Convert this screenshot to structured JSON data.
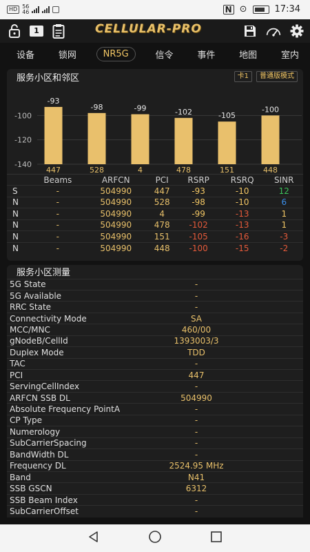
{
  "status_bar": {
    "left_badges": [
      "HD",
      "56",
      "46",
      "📶"
    ],
    "time": "17:34"
  },
  "toolbar": {
    "sim_badge": "1",
    "title": "CELLULAR-PRO"
  },
  "tabs": [
    "设备",
    "锁网",
    "NR5G",
    "信令",
    "事件",
    "地图",
    "室内"
  ],
  "active_tab": "NR5G",
  "neighbor_panel": {
    "title": "服务小区和邻区",
    "card_badge": "卡1",
    "mode_badge": "普通版模式"
  },
  "chart_data": {
    "type": "bar",
    "categories": [
      "447",
      "528",
      "4",
      "478",
      "151",
      "448"
    ],
    "values": [
      -93,
      -98,
      -99,
      -102,
      -105,
      -100
    ],
    "data_labels": [
      "-93",
      "-98",
      "-99",
      "-102",
      "-105",
      "-100"
    ],
    "y_ticks": [
      "-100",
      "-120",
      "-140"
    ],
    "ylim": [
      -140,
      -80
    ],
    "bar_color": "#e9c06c",
    "grid": true
  },
  "neighbor_table": {
    "headers": [
      "",
      "Beams",
      "ARFCN",
      "PCI",
      "RSRP",
      "RSRQ",
      "SINR"
    ],
    "rows": [
      [
        "S",
        "-",
        "504990",
        "447",
        "-93",
        "-10",
        "12"
      ],
      [
        "N",
        "-",
        "504990",
        "528",
        "-98",
        "-10",
        "6"
      ],
      [
        "N",
        "-",
        "504990",
        "4",
        "-99",
        "-13",
        "1"
      ],
      [
        "N",
        "-",
        "504990",
        "478",
        "-102",
        "-13",
        "1"
      ],
      [
        "N",
        "-",
        "504990",
        "151",
        "-105",
        "-16",
        "-3"
      ],
      [
        "N",
        "-",
        "504990",
        "448",
        "-100",
        "-15",
        "-2"
      ]
    ],
    "colors": {
      "rsrp": [
        "yellow",
        "yellow",
        "yellow",
        "red",
        "red",
        "red"
      ],
      "rsrq": [
        "yellow",
        "yellow",
        "red",
        "red",
        "red",
        "red"
      ],
      "sinr": [
        "green",
        "blue",
        "yellow",
        "yellow",
        "red",
        "red"
      ]
    }
  },
  "measure_panel": {
    "title": "服务小区测量",
    "rows": [
      {
        "k": "5G State",
        "v": "-"
      },
      {
        "k": "5G Available",
        "v": "-"
      },
      {
        "k": "RRC State",
        "v": "-"
      },
      {
        "k": "Connectivity Mode",
        "v": "SA"
      },
      {
        "k": "MCC/MNC",
        "v": "460/00"
      },
      {
        "k": "gNodeB/CellId",
        "v": "1393003/3"
      },
      {
        "k": "Duplex Mode",
        "v": "TDD"
      },
      {
        "k": "TAC",
        "v": "-"
      },
      {
        "k": "PCI",
        "v": "447"
      },
      {
        "k": "ServingCellIndex",
        "v": "-"
      },
      {
        "k": "ARFCN SSB DL",
        "v": "504990"
      },
      {
        "k": "Absolute Frequency PointA",
        "v": "-"
      },
      {
        "k": "CP Type",
        "v": "-"
      },
      {
        "k": "Numerology",
        "v": "-"
      },
      {
        "k": "SubCarrierSpacing",
        "v": "-"
      },
      {
        "k": "BandWidth DL",
        "v": "-"
      },
      {
        "k": "Frequency DL",
        "v": "2524.95 MHz"
      },
      {
        "k": "Band",
        "v": "N41"
      },
      {
        "k": "SSB GSCN",
        "v": "6312"
      },
      {
        "k": "SSB Beam Index",
        "v": "-"
      },
      {
        "k": "SubCarrierOffset",
        "v": "-"
      }
    ]
  },
  "icons": {
    "toolbar": [
      "lock-icon",
      "sim-card-icon",
      "clipboard-icon",
      "save-icon",
      "speedometer-icon",
      "gear-icon"
    ],
    "navbar": [
      "back-icon",
      "home-icon",
      "recents-icon"
    ]
  }
}
